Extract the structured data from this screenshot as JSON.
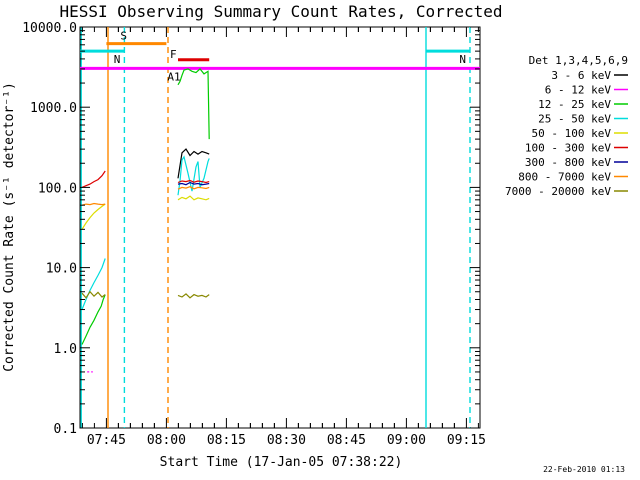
{
  "chart_data": {
    "type": "line",
    "title": "HESSI Observing Summary Count Rates, Corrected",
    "xlabel": "Start Time (17-Jan-05 07:38:22)",
    "ylabel": "Corrected Count Rate (s⁻¹ detector⁻¹)",
    "timestamp": "22-Feb-2010 01:13",
    "y_scale": "log",
    "ylim": [
      0.1,
      10000
    ],
    "xlim_minutes": [
      0,
      100
    ],
    "x_ticks": [
      {
        "label": "07:45",
        "min": 6.6
      },
      {
        "label": "08:00",
        "min": 21.6
      },
      {
        "label": "08:15",
        "min": 36.6
      },
      {
        "label": "08:30",
        "min": 51.6
      },
      {
        "label": "08:45",
        "min": 66.6
      },
      {
        "label": "09:00",
        "min": 81.6
      },
      {
        "label": "09:15",
        "min": 96.6
      }
    ],
    "y_ticks": [
      {
        "label": "10000.0",
        "v": 10000
      },
      {
        "label": "1000.0",
        "v": 1000
      },
      {
        "label": "100.0",
        "v": 100
      },
      {
        "label": "10.0",
        "v": 10
      },
      {
        "label": "1.0",
        "v": 1
      },
      {
        "label": "0.1",
        "v": 0.1
      }
    ],
    "legend": {
      "header": "Det 1,3,4,5,6,9",
      "entries": [
        {
          "name": "3 - 6 keV",
          "color": "#000000"
        },
        {
          "name": "6 - 12 keV",
          "color": "#ff00ff"
        },
        {
          "name": "12 - 25 keV",
          "color": "#00cc00"
        },
        {
          "name": "25 - 50 keV",
          "color": "#00dddd"
        },
        {
          "name": "50 - 100 keV",
          "color": "#dddd00"
        },
        {
          "name": "100 - 300 keV",
          "color": "#dd0000"
        },
        {
          "name": "300 - 800 keV",
          "color": "#000099"
        },
        {
          "name": "800 - 7000 keV",
          "color": "#ff8800"
        },
        {
          "name": "7000 - 20000 keV",
          "color": "#888800"
        }
      ]
    },
    "flags": [
      {
        "label": "S",
        "color": "#ff8800",
        "start_min": 6.6,
        "end_min": 21.6,
        "level": 6200
      },
      {
        "label": "N",
        "color": "#00dddd",
        "start_min": 0,
        "end_min": 11.1,
        "level": 5000
      },
      {
        "label": "N",
        "color": "#00dddd",
        "start_min": 86.5,
        "end_min": 97.5,
        "level": 5000
      },
      {
        "label": "F",
        "color": "#dd0000",
        "start_min": 24.5,
        "end_min": 32.3,
        "level": 3900
      },
      {
        "label": "A1",
        "color": "#ff00ff",
        "start_min": 0,
        "end_min": 100,
        "level": 3050
      }
    ],
    "vertical_lines": [
      {
        "min": 0.3,
        "color": "#00dddd",
        "style": "solid"
      },
      {
        "min": 7.0,
        "color": "#ff8800",
        "style": "solid"
      },
      {
        "min": 11.1,
        "color": "#00dddd",
        "style": "dashed"
      },
      {
        "min": 22.0,
        "color": "#ff8800",
        "style": "dashed"
      },
      {
        "min": 86.5,
        "color": "#00dddd",
        "style": "solid"
      },
      {
        "min": 97.5,
        "color": "#00dddd",
        "style": "dashed"
      }
    ],
    "series": [
      {
        "name": "3 - 6 keV",
        "color": "#000000",
        "x": [
          24.5,
          25.5,
          26.5,
          27.5,
          28.5,
          29.5,
          30.5,
          31.5,
          32.3
        ],
        "y": [
          130,
          270,
          300,
          250,
          280,
          260,
          280,
          270,
          260
        ]
      },
      {
        "name": "6 - 12 keV",
        "color": "#ff00ff",
        "x": [
          1.8,
          2.5,
          3.2
        ],
        "y": [
          0.5,
          0.5,
          0.5
        ]
      },
      {
        "name": "12 - 25 keV",
        "color": "#00cc00",
        "x": [
          0.5,
          1.5,
          2.5,
          3.5,
          4.5,
          5.3,
          5.8,
          6.3
        ],
        "y": [
          1.1,
          1.4,
          1.8,
          2.2,
          2.8,
          3.3,
          4.0,
          4.6
        ]
      },
      {
        "name": "12 - 25 keV",
        "color": "#00cc00",
        "x": [
          24.5,
          25.0,
          25.5,
          26.0,
          27.0,
          28.0,
          29.0,
          30.0,
          31.0,
          32.0,
          32.3
        ],
        "y": [
          1900,
          2100,
          2500,
          2900,
          3000,
          2800,
          2700,
          3000,
          2600,
          2800,
          400
        ]
      },
      {
        "name": "25 - 50 keV",
        "color": "#00dddd",
        "x": [
          0.5,
          1.5,
          2.5,
          3.5,
          4.5,
          5.5,
          6.3
        ],
        "y": [
          3.0,
          4.0,
          5.2,
          6.5,
          8.0,
          10.0,
          13.0
        ]
      },
      {
        "name": "25 - 50 keV",
        "color": "#00dddd",
        "x": [
          24.5,
          25.0,
          25.5,
          26.0,
          27.0,
          28.0,
          29.0,
          29.5,
          30.0,
          31.0,
          32.0,
          32.3
        ],
        "y": [
          80,
          120,
          220,
          240,
          150,
          90,
          180,
          210,
          100,
          130,
          210,
          230
        ]
      },
      {
        "name": "50 - 100 keV",
        "color": "#dddd00",
        "x": [
          0.5,
          1.5,
          2.5,
          3.5,
          4.5,
          5.5,
          6.3
        ],
        "y": [
          30,
          36,
          42,
          48,
          53,
          58,
          62
        ]
      },
      {
        "name": "50 - 100 keV",
        "color": "#dddd00",
        "x": [
          24.5,
          25.5,
          26.5,
          27.5,
          28.5,
          29.5,
          30.5,
          31.5,
          32.3
        ],
        "y": [
          70,
          75,
          72,
          78,
          70,
          74,
          72,
          70,
          73
        ]
      },
      {
        "name": "100 - 300 keV",
        "color": "#dd0000",
        "x": [
          0.5,
          1.5,
          2.5,
          3.5,
          4.5,
          5.5,
          6.3
        ],
        "y": [
          100,
          105,
          110,
          118,
          125,
          140,
          160
        ]
      },
      {
        "name": "100 - 300 keV",
        "color": "#dd0000",
        "x": [
          24.5,
          25.5,
          26.5,
          27.5,
          28.5,
          29.5,
          30.5,
          31.5,
          32.3
        ],
        "y": [
          115,
          120,
          118,
          122,
          116,
          120,
          118,
          115,
          118
        ]
      },
      {
        "name": "300 - 800 keV",
        "color": "#000099",
        "x": [
          24.5,
          25.5,
          26.5,
          27.5,
          28.5,
          29.5,
          30.5,
          31.5,
          32.3
        ],
        "y": [
          110,
          112,
          108,
          115,
          110,
          112,
          108,
          110,
          112
        ]
      },
      {
        "name": "800 - 7000 keV",
        "color": "#ff8800",
        "x": [
          0.5,
          1.5,
          2.5,
          3.5,
          4.5,
          5.5,
          6.3
        ],
        "y": [
          60,
          62,
          61,
          63,
          62,
          61,
          62
        ]
      },
      {
        "name": "800 - 7000 keV",
        "color": "#ff8800",
        "x": [
          24.5,
          25.5,
          26.5,
          27.5,
          28.5,
          29.5,
          30.5,
          31.5,
          32.3
        ],
        "y": [
          95,
          100,
          98,
          102,
          96,
          100,
          99,
          97,
          100
        ]
      },
      {
        "name": "7000 - 20000 keV",
        "color": "#888800",
        "x": [
          0.5,
          1.5,
          2.5,
          3.5,
          4.5,
          5.5,
          6.3
        ],
        "y": [
          4.8,
          4.2,
          5.0,
          4.4,
          4.9,
          4.3,
          4.6
        ]
      },
      {
        "name": "7000 - 20000 keV",
        "color": "#888800",
        "x": [
          24.5,
          25.5,
          26.5,
          27.5,
          28.5,
          29.5,
          30.5,
          31.5,
          32.3
        ],
        "y": [
          4.5,
          4.3,
          4.7,
          4.2,
          4.6,
          4.4,
          4.5,
          4.3,
          4.6
        ]
      }
    ]
  }
}
